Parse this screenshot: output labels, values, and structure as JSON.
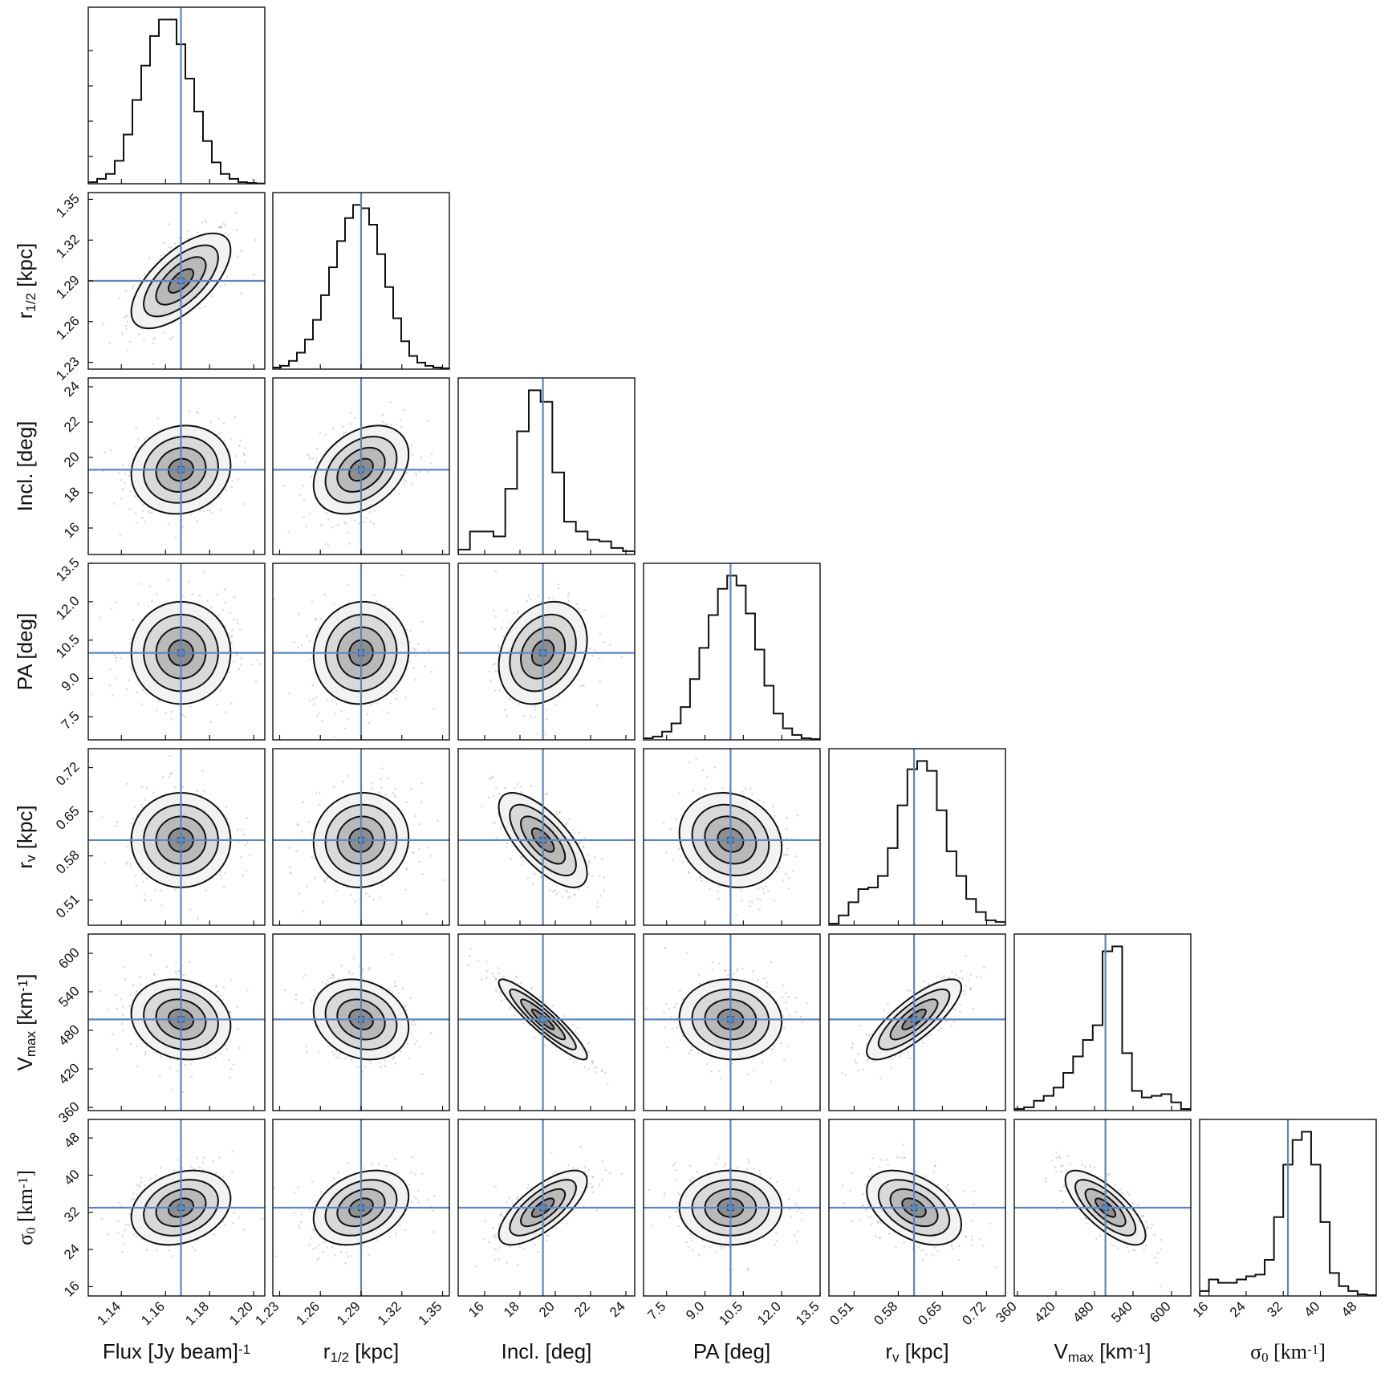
{
  "chart_data": {
    "type": "corner",
    "truth_color": "#5b86bf",
    "parameters": [
      {
        "id": "flux",
        "label": "Flux [Jy beam",
        "label_sup": "-1",
        "label_tail": "]",
        "range": [
          1.125,
          1.205
        ],
        "ticks": [
          "1.14",
          "1.16",
          "1.18",
          "1.20"
        ],
        "tick_values": [
          1.14,
          1.16,
          1.18,
          1.2
        ],
        "truth": 1.167,
        "std": 0.009,
        "hist": [
          0.01,
          0.03,
          0.06,
          0.14,
          0.3,
          0.51,
          0.72,
          0.9,
          1.0,
          1.0,
          0.85,
          0.64,
          0.44,
          0.26,
          0.13,
          0.06,
          0.03,
          0.01,
          0.005,
          0.002
        ]
      },
      {
        "id": "rhalf",
        "label": "r",
        "label_sub": "1/2",
        "label_tail": " [kpc]",
        "range": [
          1.225,
          1.355
        ],
        "ticks": [
          "1.23",
          "1.26",
          "1.29",
          "1.32",
          "1.35"
        ],
        "tick_values": [
          1.23,
          1.26,
          1.29,
          1.32,
          1.35
        ],
        "truth": 1.29,
        "std": 0.014,
        "hist": [
          0.01,
          0.02,
          0.05,
          0.1,
          0.18,
          0.3,
          0.45,
          0.62,
          0.78,
          0.92,
          1.0,
          0.98,
          0.88,
          0.7,
          0.5,
          0.31,
          0.17,
          0.08,
          0.04,
          0.02,
          0.01,
          0.005
        ]
      },
      {
        "id": "incl",
        "label": "Incl. [deg]",
        "range": [
          14.5,
          24.5
        ],
        "ticks": [
          "16",
          "18",
          "20",
          "22",
          "24"
        ],
        "tick_values": [
          16,
          18,
          20,
          22,
          24
        ],
        "truth": 19.3,
        "std": 1.0,
        "hist": [
          0.03,
          0.14,
          0.14,
          0.11,
          0.4,
          0.75,
          1.0,
          0.93,
          0.5,
          0.2,
          0.14,
          0.09,
          0.08,
          0.04,
          0.02
        ]
      },
      {
        "id": "pa",
        "label": "PA [deg]",
        "range": [
          6.6,
          13.5
        ],
        "ticks": [
          "7.5",
          "9.0",
          "10.5",
          "12.0",
          "13.5"
        ],
        "tick_values": [
          7.5,
          9.0,
          10.5,
          12.0,
          13.5
        ],
        "truth": 10.0,
        "std": 0.8,
        "hist": [
          0.01,
          0.02,
          0.05,
          0.1,
          0.2,
          0.37,
          0.56,
          0.76,
          0.92,
          1.0,
          0.94,
          0.77,
          0.55,
          0.33,
          0.16,
          0.07,
          0.03,
          0.01,
          0.005
        ]
      },
      {
        "id": "rv",
        "label": "r",
        "label_sub": "v",
        "label_tail": " [kpc]",
        "range": [
          0.47,
          0.75
        ],
        "ticks": [
          "0.51",
          "0.58",
          "0.65",
          "0.72"
        ],
        "tick_values": [
          0.51,
          0.58,
          0.65,
          0.72
        ],
        "truth": 0.605,
        "std": 0.03,
        "hist": [
          0.01,
          0.06,
          0.14,
          0.22,
          0.23,
          0.3,
          0.47,
          0.73,
          0.95,
          1.0,
          0.94,
          0.7,
          0.45,
          0.3,
          0.16,
          0.08,
          0.03,
          0.02
        ]
      },
      {
        "id": "vmax",
        "label": "V",
        "label_sub": "max",
        "label_tail": " [km",
        "label_sup": "-1",
        "label_end": "]",
        "range": [
          355,
          630
        ],
        "ticks": [
          "360",
          "420",
          "480",
          "540",
          "600"
        ],
        "tick_values": [
          360,
          420,
          480,
          540,
          600
        ],
        "truth": 497,
        "std": 25,
        "hist": [
          0.01,
          0.02,
          0.06,
          0.09,
          0.14,
          0.23,
          0.33,
          0.43,
          0.52,
          0.97,
          1.0,
          0.35,
          0.12,
          0.08,
          0.09,
          0.1,
          0.05,
          0.01
        ]
      },
      {
        "id": "sigma",
        "label": "σ",
        "label_sub": "0",
        "label_tail": " [km",
        "label_sup": "-1",
        "label_end": "]",
        "serif": true,
        "range": [
          14,
          52
        ],
        "ticks": [
          "16",
          "24",
          "32",
          "40",
          "48"
        ],
        "tick_values": [
          16,
          24,
          32,
          40,
          48
        ],
        "truth": 33,
        "std": 3.2,
        "hist": [
          0.03,
          0.1,
          0.08,
          0.08,
          0.1,
          0.12,
          0.13,
          0.22,
          0.48,
          0.8,
          0.95,
          1.0,
          0.8,
          0.45,
          0.14,
          0.06,
          0.03,
          0.01,
          0.005
        ]
      }
    ],
    "correlations": {
      "1-0": 0.65,
      "2-0": 0.1,
      "2-1": 0.35,
      "3-0": 0.0,
      "3-1": 0.05,
      "3-2": 0.25,
      "4-0": 0.0,
      "4-1": 0.05,
      "4-2": -0.7,
      "4-3": -0.15,
      "5-0": -0.15,
      "5-1": -0.2,
      "5-2": -0.92,
      "5-3": -0.05,
      "5-4": 0.8,
      "6-0": 0.25,
      "6-1": 0.3,
      "6-2": 0.72,
      "6-3": 0.0,
      "6-4": -0.45,
      "6-5": -0.75
    },
    "contour_levels_sigma": [
      0.5,
      1.0,
      1.5,
      2.0
    ]
  }
}
